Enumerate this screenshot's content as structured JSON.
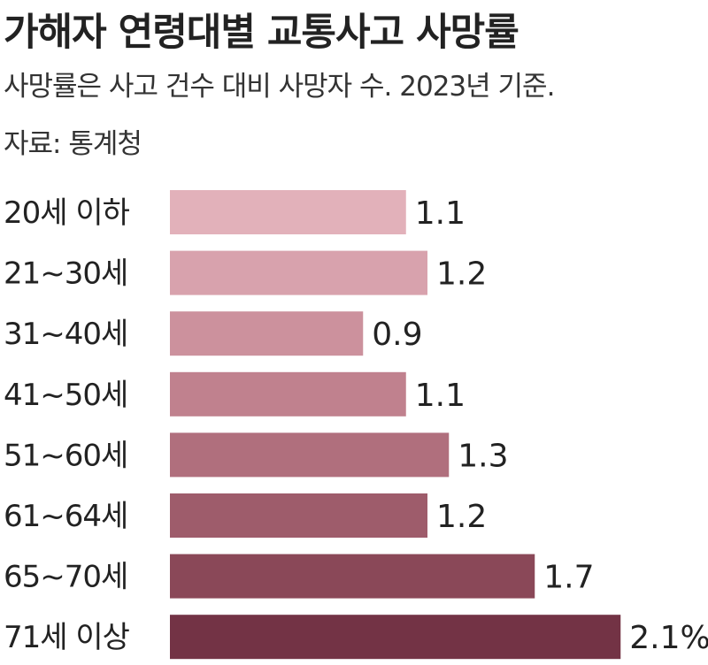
{
  "header": {
    "title": "가해자 연령대별 교통사고 사망률",
    "subtitle": "사망률은 사고 건수 대비 사망자 수. 2023년 기준.",
    "source": "자료: 통계청"
  },
  "chart_data": {
    "type": "bar",
    "orientation": "horizontal",
    "title": "가해자 연령대별 교통사고 사망률",
    "subtitle": "사망률은 사고 건수 대비 사망자 수. 2023년 기준.",
    "source": "자료: 통계청",
    "categories": [
      "20세 이하",
      "21~30세",
      "31~40세",
      "41~50세",
      "51~60세",
      "61~64세",
      "65~70세",
      "71세 이상"
    ],
    "values": [
      1.1,
      1.2,
      0.9,
      1.1,
      1.3,
      1.2,
      1.7,
      2.1
    ],
    "value_labels": [
      "1.1",
      "1.2",
      "0.9",
      "1.1",
      "1.3",
      "1.2",
      "1.7",
      "2.1%"
    ],
    "unit": "%",
    "grid": false,
    "legend": "none",
    "colors": [
      "#e2b1ba",
      "#d8a2ad",
      "#cc919d",
      "#c0818e",
      "#b06f7d",
      "#9e5c6b",
      "#8a4858",
      "#733345"
    ]
  }
}
